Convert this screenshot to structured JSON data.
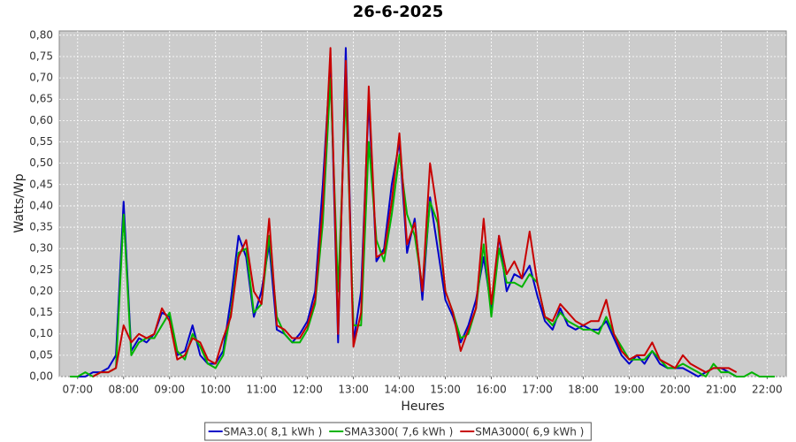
{
  "chart_data": {
    "type": "line",
    "title": "26-6-2025",
    "y_label": "Watts/Wp",
    "x_label": "Heures",
    "x": [
      "06:50",
      "07:00",
      "07:10",
      "07:20",
      "07:30",
      "07:40",
      "07:50",
      "08:00",
      "08:10",
      "08:20",
      "08:30",
      "08:40",
      "08:50",
      "09:00",
      "09:10",
      "09:20",
      "09:30",
      "09:40",
      "09:50",
      "10:00",
      "10:10",
      "10:20",
      "10:30",
      "10:40",
      "10:50",
      "11:00",
      "11:10",
      "11:20",
      "11:30",
      "11:40",
      "11:50",
      "12:00",
      "12:10",
      "12:20",
      "12:30",
      "12:40",
      "12:50",
      "13:00",
      "13:10",
      "13:20",
      "13:30",
      "13:40",
      "13:50",
      "14:00",
      "14:10",
      "14:20",
      "14:30",
      "14:40",
      "14:50",
      "15:00",
      "15:10",
      "15:20",
      "15:30",
      "15:40",
      "15:50",
      "16:00",
      "16:10",
      "16:20",
      "16:30",
      "16:40",
      "16:50",
      "17:00",
      "17:10",
      "17:20",
      "17:30",
      "17:40",
      "17:50",
      "18:00",
      "18:10",
      "18:20",
      "18:30",
      "18:40",
      "18:50",
      "19:00",
      "19:10",
      "19:20",
      "19:30",
      "19:40",
      "19:50",
      "20:00",
      "20:10",
      "20:20",
      "20:30",
      "20:40",
      "20:50",
      "21:00",
      "21:10",
      "21:20",
      "21:30",
      "21:40",
      "21:50",
      "22:00",
      "22:10"
    ],
    "series": [
      {
        "name": "SMA3.0( 8,1 kWh )",
        "color": "#0000c8",
        "values": [
          null,
          0.0,
          0.0,
          0.01,
          0.01,
          0.02,
          0.05,
          0.41,
          0.06,
          0.09,
          0.08,
          0.1,
          0.15,
          0.14,
          0.05,
          0.06,
          0.12,
          0.05,
          0.03,
          0.03,
          0.06,
          0.18,
          0.33,
          0.28,
          0.14,
          0.2,
          0.31,
          0.11,
          0.1,
          0.08,
          0.1,
          0.13,
          0.2,
          0.45,
          0.74,
          0.08,
          0.77,
          0.08,
          0.2,
          0.65,
          0.27,
          0.3,
          0.45,
          0.55,
          0.29,
          0.37,
          0.18,
          0.42,
          0.3,
          0.18,
          0.14,
          0.08,
          0.12,
          0.18,
          0.28,
          0.16,
          0.33,
          0.2,
          0.24,
          0.23,
          0.26,
          0.19,
          0.13,
          0.11,
          0.16,
          0.12,
          0.11,
          0.12,
          0.11,
          0.11,
          0.13,
          0.09,
          0.05,
          0.03,
          0.05,
          0.03,
          0.06,
          0.03,
          0.02,
          0.02,
          0.02,
          0.01,
          0.0,
          0.01,
          0.02,
          0.02,
          0.01,
          0.0,
          null,
          null,
          null,
          null,
          null
        ]
      },
      {
        "name": "SMA3300( 7,6 kWh )",
        "color": "#00b400",
        "values": [
          0.0,
          0.0,
          0.01,
          0.0,
          0.01,
          0.01,
          0.02,
          0.38,
          0.05,
          0.08,
          0.09,
          0.09,
          0.12,
          0.15,
          0.06,
          0.04,
          0.1,
          0.07,
          0.03,
          0.02,
          0.05,
          0.15,
          0.29,
          0.3,
          0.15,
          0.17,
          0.33,
          0.14,
          0.1,
          0.08,
          0.08,
          0.11,
          0.17,
          0.36,
          0.7,
          0.2,
          0.67,
          0.12,
          0.12,
          0.55,
          0.32,
          0.27,
          0.38,
          0.52,
          0.38,
          0.33,
          0.21,
          0.41,
          0.36,
          0.2,
          0.15,
          0.09,
          0.1,
          0.16,
          0.31,
          0.14,
          0.3,
          0.22,
          0.22,
          0.21,
          0.24,
          0.22,
          0.14,
          0.12,
          0.15,
          0.13,
          0.12,
          0.11,
          0.11,
          0.1,
          0.14,
          0.1,
          0.07,
          0.04,
          0.04,
          0.04,
          0.06,
          0.04,
          0.02,
          0.02,
          0.03,
          0.02,
          0.01,
          0.0,
          0.03,
          0.01,
          0.01,
          0.0,
          0.0,
          0.01,
          0.0,
          0.0,
          0.0
        ]
      },
      {
        "name": "SMA3000( 6,9 kWh )",
        "color": "#c80000",
        "values": [
          null,
          null,
          null,
          0.0,
          0.01,
          0.01,
          0.02,
          0.12,
          0.08,
          0.1,
          0.09,
          0.1,
          0.16,
          0.13,
          0.04,
          0.05,
          0.09,
          0.08,
          0.04,
          0.03,
          0.09,
          0.14,
          0.28,
          0.32,
          0.2,
          0.17,
          0.37,
          0.12,
          0.11,
          0.09,
          0.09,
          0.12,
          0.18,
          0.4,
          0.77,
          0.1,
          0.74,
          0.07,
          0.15,
          0.68,
          0.28,
          0.29,
          0.41,
          0.57,
          0.31,
          0.36,
          0.2,
          0.5,
          0.38,
          0.2,
          0.15,
          0.06,
          0.11,
          0.16,
          0.37,
          0.17,
          0.33,
          0.24,
          0.27,
          0.23,
          0.34,
          0.22,
          0.14,
          0.13,
          0.17,
          0.15,
          0.13,
          0.12,
          0.13,
          0.13,
          0.18,
          0.1,
          0.06,
          0.04,
          0.05,
          0.05,
          0.08,
          0.04,
          0.03,
          0.02,
          0.05,
          0.03,
          0.02,
          0.01,
          0.02,
          0.02,
          0.02,
          0.01,
          null,
          null,
          null,
          null,
          null
        ]
      }
    ],
    "xlim": [
      "06:36",
      "22:25"
    ],
    "xticks": [
      "07:00",
      "08:00",
      "09:00",
      "10:00",
      "11:00",
      "12:00",
      "13:00",
      "14:00",
      "15:00",
      "16:00",
      "17:00",
      "18:00",
      "19:00",
      "20:00",
      "21:00",
      "22:00"
    ],
    "ylim": [
      0,
      0.81
    ],
    "yticks": [
      {
        "value": 0,
        "label": "0,00"
      },
      {
        "value": 0.05,
        "label": "0,05"
      },
      {
        "value": 0.1,
        "label": "0,10"
      },
      {
        "value": 0.15,
        "label": "0,15"
      },
      {
        "value": 0.2,
        "label": "0,20"
      },
      {
        "value": 0.25,
        "label": "0,25"
      },
      {
        "value": 0.3,
        "label": "0,30"
      },
      {
        "value": 0.35,
        "label": "0,35"
      },
      {
        "value": 0.4,
        "label": "0,40"
      },
      {
        "value": 0.45,
        "label": "0,45"
      },
      {
        "value": 0.5,
        "label": "0,50"
      },
      {
        "value": 0.55,
        "label": "0,55"
      },
      {
        "value": 0.6,
        "label": "0,60"
      },
      {
        "value": 0.65,
        "label": "0,65"
      },
      {
        "value": 0.7,
        "label": "0,70"
      },
      {
        "value": 0.75,
        "label": "0,75"
      },
      {
        "value": 0.8,
        "label": "0,80"
      }
    ],
    "grid": true
  }
}
